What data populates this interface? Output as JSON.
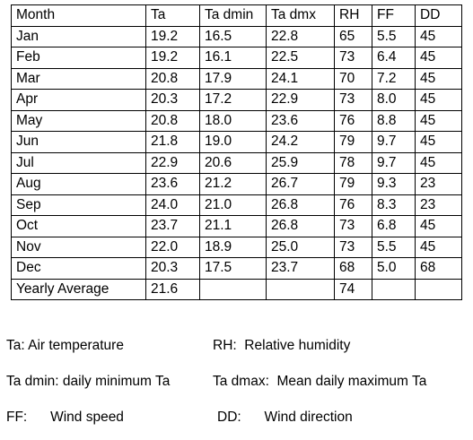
{
  "table": {
    "headers": [
      "Month",
      "Ta",
      "Ta dmin",
      "Ta dmx",
      "RH",
      "FF",
      "DD"
    ],
    "rows": [
      [
        "Jan",
        "19.2",
        "16.5",
        "22.8",
        "65",
        "5.5",
        "45"
      ],
      [
        "Feb",
        "19.2",
        "16.1",
        "22.5",
        "73",
        "6.4",
        "45"
      ],
      [
        "Mar",
        "20.8",
        "17.9",
        "24.1",
        "70",
        "7.2",
        "45"
      ],
      [
        "Apr",
        "20.3",
        "17.2",
        "22.9",
        "73",
        "8.0",
        "45"
      ],
      [
        "May",
        "20.8",
        "18.0",
        "23.6",
        "76",
        "8.8",
        "45"
      ],
      [
        "Jun",
        "21.8",
        "19.0",
        "24.2",
        "79",
        "9.7",
        "45"
      ],
      [
        "Jul",
        "22.9",
        "20.6",
        "25.9",
        "78",
        "9.7",
        "45"
      ],
      [
        "Aug",
        "23.6",
        "21.2",
        "26.7",
        "79",
        "9.3",
        "23"
      ],
      [
        "Sep",
        "24.0",
        "21.0",
        "26.8",
        "76",
        "8.3",
        "23"
      ],
      [
        "Oct",
        "23.7",
        "21.1",
        "26.8",
        "73",
        "6.8",
        "45"
      ],
      [
        "Nov",
        "22.0",
        "18.9",
        "25.0",
        "73",
        "5.5",
        "45"
      ],
      [
        "Dec",
        "20.3",
        "17.5",
        "23.7",
        "68",
        "5.0",
        "68"
      ],
      [
        "Yearly Average",
        "21.6",
        "",
        "",
        "74",
        "",
        ""
      ]
    ]
  },
  "legend": {
    "ta": "Ta: Air temperature",
    "rh": "RH:  Relative humidity",
    "ta_dmin": "Ta dmin: daily minimum Ta",
    "ta_dmax": "Ta dmax:  Mean daily maximum Ta",
    "ff": "FF:      Wind speed",
    "dd": "DD:      Wind direction"
  }
}
